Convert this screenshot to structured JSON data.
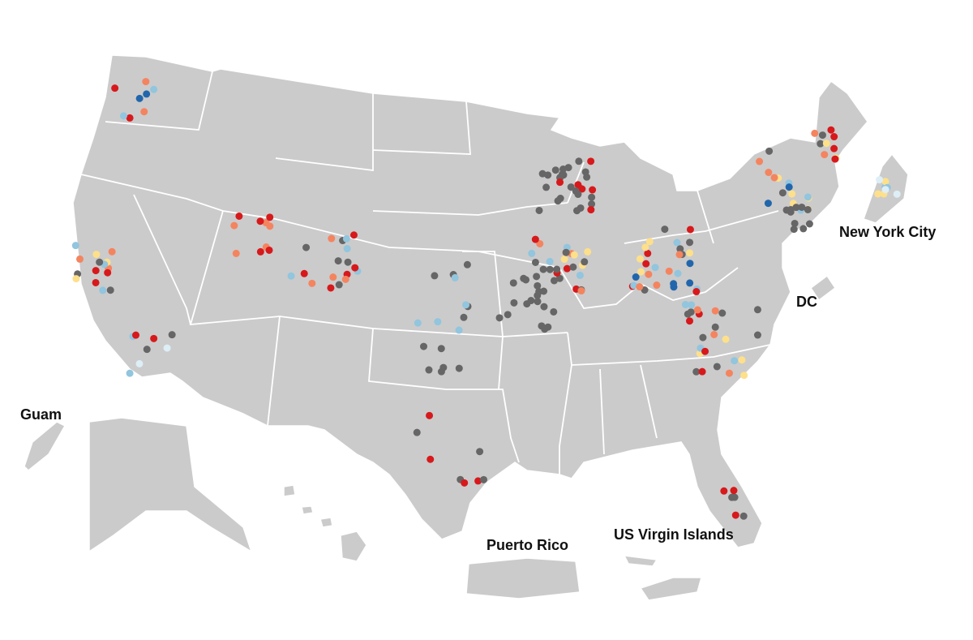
{
  "map": {
    "labels": {
      "guam": "Guam",
      "puerto_rico": "Puerto Rico",
      "virgin_islands": "US Virgin Islands",
      "new_york_city": "New York City",
      "dc": "DC"
    }
  }
}
